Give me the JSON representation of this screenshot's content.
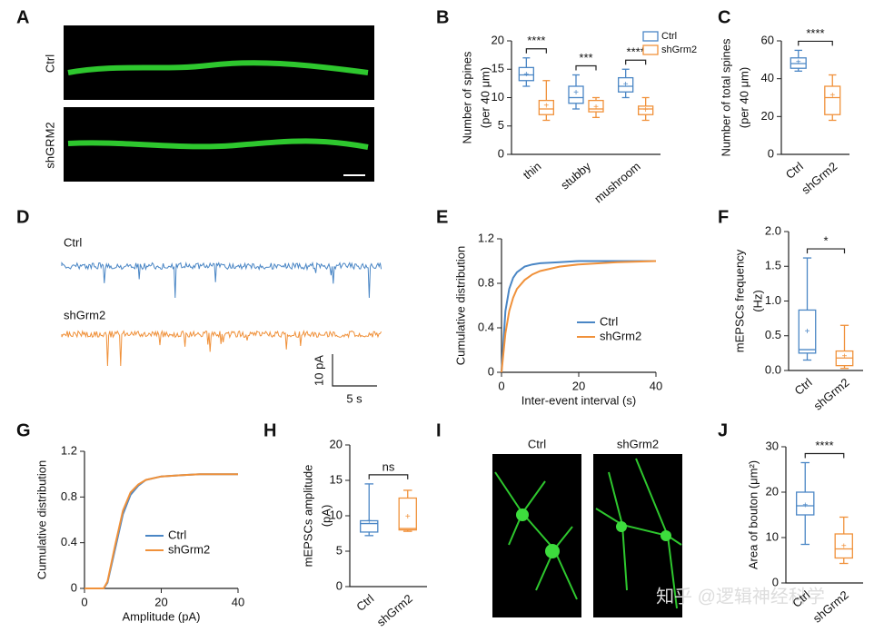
{
  "panels": [
    "A",
    "B",
    "C",
    "D",
    "E",
    "F",
    "G",
    "H",
    "I",
    "J"
  ],
  "image_a": {
    "labels": [
      "Ctrl",
      "shGRM2"
    ]
  },
  "traces": {
    "labels": [
      "Ctrl",
      "shGrm2"
    ],
    "scale_y": "10 pA",
    "scale_x": "5 s"
  },
  "image_i": {
    "labels": [
      "Ctrl",
      "shGrm2"
    ]
  },
  "watermark": "知乎 @逻辑神经科学",
  "chart_data": [
    {
      "type": "box",
      "ylabel": [
        "Number of spines",
        "(per 40 μm)"
      ],
      "categories": [
        "thin",
        "stubby",
        "mushroom"
      ],
      "ylim": [
        0,
        20
      ],
      "yticks": [
        0,
        5,
        10,
        15,
        20
      ],
      "significance": [
        "****",
        "***",
        "****"
      ],
      "series": [
        {
          "name": "Ctrl",
          "color": "#4a86c5",
          "min": [
            12,
            8,
            10
          ],
          "q1": [
            13,
            9,
            11
          ],
          "median": [
            14,
            10,
            12
          ],
          "q3": [
            15.3,
            12,
            13.5
          ],
          "max": [
            17,
            14,
            15
          ],
          "mean": [
            14,
            10.8,
            12.3
          ]
        },
        {
          "name": "shGrm2",
          "color": "#f0913a",
          "min": [
            6,
            6.5,
            6
          ],
          "q1": [
            7,
            7.5,
            7
          ],
          "median": [
            8,
            8,
            8
          ],
          "q3": [
            9.5,
            9.5,
            8.5
          ],
          "max": [
            13,
            10,
            10
          ],
          "mean": [
            8.5,
            8.3,
            7.8
          ]
        }
      ]
    },
    {
      "type": "box",
      "ylabel": [
        "Number of total spines",
        "(per 40 μm)"
      ],
      "categories": [
        "Ctrl",
        "shGrm2"
      ],
      "colors": [
        "#4a86c5",
        "#f0913a"
      ],
      "ylim": [
        0,
        60
      ],
      "yticks": [
        0,
        20,
        40,
        60
      ],
      "significance": "****",
      "min": [
        44,
        18
      ],
      "q1": [
        45.5,
        21
      ],
      "median": [
        48,
        30
      ],
      "q3": [
        51,
        36
      ],
      "max": [
        55,
        42
      ],
      "mean": [
        48.5,
        31
      ]
    },
    {
      "type": "line",
      "xlabel": "Inter-event interval (s)",
      "ylabel": [
        "Cumulative distribution"
      ],
      "x": [
        0,
        1,
        2,
        3,
        4,
        6,
        8,
        10,
        15,
        20,
        30,
        40
      ],
      "xlim": [
        0,
        40
      ],
      "xticks": [
        0,
        20,
        40
      ],
      "ylim": [
        0,
        1.2
      ],
      "yticks": [
        0,
        0.4,
        0.8,
        1.2
      ],
      "series": [
        {
          "name": "Ctrl",
          "color": "#4a86c5",
          "values": [
            0,
            0.55,
            0.75,
            0.85,
            0.9,
            0.95,
            0.97,
            0.98,
            0.99,
            1,
            1,
            1
          ]
        },
        {
          "name": "shGrm2",
          "color": "#f0913a",
          "values": [
            0,
            0.35,
            0.55,
            0.67,
            0.75,
            0.83,
            0.88,
            0.91,
            0.95,
            0.97,
            0.99,
            1
          ]
        }
      ]
    },
    {
      "type": "box",
      "ylabel": [
        "mEPSCs frequency",
        "(Hz)"
      ],
      "categories": [
        "Ctrl",
        "shGrm2"
      ],
      "colors": [
        "#4a86c5",
        "#f0913a"
      ],
      "ylim": [
        0,
        2
      ],
      "yticks": [
        {
          "value": 0,
          "label": "0.0"
        },
        0.5,
        {
          "value": 1,
          "label": "1.0"
        },
        1.5,
        {
          "value": 2,
          "label": "2.0"
        }
      ],
      "significance": "*",
      "min": [
        0.15,
        0.03
      ],
      "q1": [
        0.25,
        0.07
      ],
      "median": [
        0.3,
        0.18
      ],
      "q3": [
        0.87,
        0.28
      ],
      "max": [
        1.62,
        0.65
      ],
      "mean": [
        0.56,
        0.2
      ]
    },
    {
      "type": "line",
      "xlabel": "Amplitude (pA)",
      "ylabel": [
        "Cumulative distribution"
      ],
      "x": [
        0,
        5,
        6,
        8,
        10,
        12,
        14,
        16,
        20,
        25,
        30,
        40
      ],
      "xlim": [
        0,
        40
      ],
      "xticks": [
        0,
        20,
        40
      ],
      "ylim": [
        0,
        1.2
      ],
      "yticks": [
        0,
        0.4,
        0.8,
        1.2
      ],
      "series": [
        {
          "name": "Ctrl",
          "color": "#4a86c5",
          "values": [
            0,
            0,
            0.05,
            0.35,
            0.65,
            0.82,
            0.9,
            0.95,
            0.98,
            0.99,
            1,
            1
          ]
        },
        {
          "name": "shGrm2",
          "color": "#f0913a",
          "values": [
            0,
            0,
            0.06,
            0.38,
            0.68,
            0.84,
            0.91,
            0.95,
            0.98,
            0.99,
            1,
            1
          ]
        }
      ]
    },
    {
      "type": "box",
      "ylabel": [
        "mEPSCs amplitude",
        "(pA)"
      ],
      "categories": [
        "Ctrl",
        "shGrm2"
      ],
      "colors": [
        "#4a86c5",
        "#f0913a"
      ],
      "ylim": [
        0,
        20
      ],
      "yticks": [
        0,
        5,
        10,
        15,
        20
      ],
      "significance": "ns",
      "min": [
        7.2,
        7.8
      ],
      "q1": [
        7.7,
        8
      ],
      "median": [
        8.9,
        8.2
      ],
      "q3": [
        9.3,
        12.5
      ],
      "max": [
        14.5,
        13.6
      ],
      "mean": [
        9.2,
        9.8
      ]
    },
    {
      "type": "box",
      "ylabel": [
        "Area of bouton (μm²)"
      ],
      "categories": [
        "Ctrl",
        "shGrm2"
      ],
      "colors": [
        "#4a86c5",
        "#f0913a"
      ],
      "ylim": [
        0,
        30
      ],
      "yticks": [
        0,
        10,
        20,
        30
      ],
      "significance": "****",
      "min": [
        8.5,
        4.3
      ],
      "q1": [
        15,
        5.5
      ],
      "median": [
        17,
        7.5
      ],
      "q3": [
        20,
        10.8
      ],
      "max": [
        26.5,
        14.5
      ],
      "mean": [
        17,
        8
      ]
    }
  ]
}
